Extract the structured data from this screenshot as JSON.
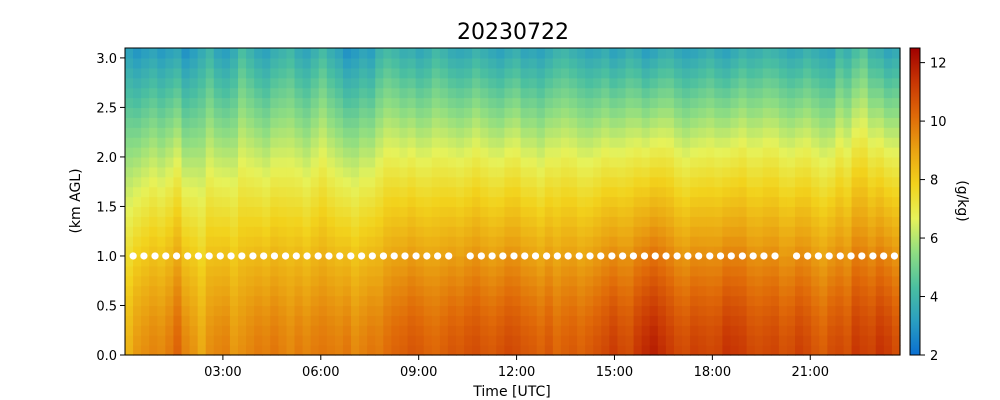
{
  "chart_data": {
    "type": "heatmap",
    "title": "20230722",
    "xlabel": "Time [UTC]",
    "ylabel": "(km AGL)",
    "colorbar_label": "(g/kg)",
    "x_range_hours": [
      0,
      23.75
    ],
    "y_range_km": [
      0,
      3.1
    ],
    "x_tick_values_hours": [
      3,
      6,
      9,
      12,
      15,
      18,
      21
    ],
    "x_tick_labels": [
      "03:00",
      "06:00",
      "09:00",
      "12:00",
      "15:00",
      "18:00",
      "21:00"
    ],
    "y_tick_values": [
      0.0,
      0.5,
      1.0,
      1.5,
      2.0,
      2.5,
      3.0
    ],
    "y_tick_labels": [
      "0.0",
      "0.5",
      "1.0",
      "1.5",
      "2.0",
      "2.5",
      "3.0"
    ],
    "color_range": [
      2,
      12.5
    ],
    "colorbar_tick_values": [
      2,
      4,
      6,
      8,
      10,
      12
    ],
    "colorbar_tick_labels": [
      "2",
      "4",
      "6",
      "8",
      "10",
      "12"
    ],
    "colormap": [
      "#0a6fd1",
      "#2a9fc0",
      "#4bbfa0",
      "#8fdd82",
      "#e6f25a",
      "#f2d21c",
      "#eaa312",
      "#e06a08",
      "#c83604",
      "#a00000"
    ],
    "height_levels_km": [
      0.05,
      0.15,
      0.25,
      0.35,
      0.45,
      0.55,
      0.65,
      0.75,
      0.85,
      0.95,
      1.05,
      1.15,
      1.25,
      1.35,
      1.45,
      1.55,
      1.65,
      1.75,
      1.85,
      1.95,
      2.05,
      2.15,
      2.25,
      2.35,
      2.45,
      2.55,
      2.65,
      2.75,
      2.85,
      2.95,
      3.05
    ],
    "surface_mixing_ratio_g_per_kg": [
      8.6,
      9.2,
      9.4,
      9.6,
      9.5,
      9.8,
      10.3,
      9.6,
      9.3,
      8.8,
      9.4,
      9.6,
      9.7,
      9.2,
      9.4,
      9.6,
      9.8,
      9.7,
      9.9,
      9.7,
      9.5,
      9.8,
      9.6,
      9.8,
      9.9,
      9.8,
      9.7,
      9.9,
      9.5,
      9.7,
      9.9,
      9.8,
      10.1,
      10.3,
      10.4,
      10.6,
      10.5,
      10.3,
      10.2,
      10.4,
      10.6,
      10.5,
      10.7,
      10.8,
      10.6,
      10.5,
      10.7,
      10.9,
      10.8,
      10.6,
      10.5,
      10.3,
      10.6,
      10.2,
      10.4,
      10.5,
      10.3,
      10.5,
      10.7,
      10.9,
      11.2,
      10.9,
      10.8,
      11.3,
      11.6,
      11.8,
      11.5,
      11.2,
      10.9,
      10.8,
      11.1,
      11.0,
      10.9,
      11.0,
      11.4,
      11.3,
      11.2,
      10.9,
      10.8,
      10.9,
      11.0,
      10.7,
      10.8,
      11.1,
      10.9,
      10.6,
      10.4,
      10.8,
      10.9,
      10.7,
      11.3,
      11.1,
      11.0,
      11.4,
      11.2,
      10.8
    ],
    "top_mixing_ratio_g_per_kg": [
      3.3,
      3.0,
      3.2,
      3.4,
      3.1,
      3.3,
      3.5,
      2.9,
      3.2,
      3.6,
      4.0,
      3.4,
      3.2,
      3.6,
      4.3,
      3.9,
      3.5,
      3.3,
      3.7,
      3.9,
      4.1,
      3.6,
      3.4,
      3.8,
      4.2,
      3.7,
      3.4,
      2.9,
      3.1,
      3.4,
      3.2,
      3.9,
      4.2,
      4.0,
      3.7,
      3.8,
      3.5,
      3.7,
      4.1,
      3.9,
      3.6,
      3.5,
      3.6,
      3.9,
      3.7,
      3.5,
      3.3,
      3.6,
      3.8,
      3.4,
      3.5,
      3.3,
      3.6,
      3.9,
      4.0,
      3.8,
      3.6,
      3.4,
      3.5,
      3.7,
      3.3,
      3.5,
      3.8,
      3.6,
      3.2,
      3.4,
      3.7,
      3.8,
      3.5,
      3.3,
      3.4,
      3.6,
      3.8,
      3.5,
      3.3,
      3.6,
      3.9,
      3.7,
      3.8,
      4.0,
      3.9,
      3.7,
      3.5,
      3.6,
      3.9,
      3.7,
      3.5,
      3.4,
      4.1,
      3.8,
      4.3,
      4.6,
      3.9,
      3.8,
      3.4,
      3.6
    ],
    "marker_height_km": 1.0,
    "marker_times_hours": [
      0.25,
      0.58,
      0.92,
      1.25,
      1.58,
      1.92,
      2.25,
      2.58,
      2.92,
      3.25,
      3.58,
      3.92,
      4.25,
      4.58,
      4.92,
      5.25,
      5.58,
      5.92,
      6.25,
      6.58,
      6.92,
      7.25,
      7.58,
      7.92,
      8.25,
      8.58,
      8.92,
      9.25,
      9.58,
      9.92,
      10.58,
      10.92,
      11.25,
      11.58,
      11.92,
      12.25,
      12.58,
      12.92,
      13.25,
      13.58,
      13.92,
      14.25,
      14.58,
      14.92,
      15.25,
      15.58,
      15.92,
      16.25,
      16.58,
      16.92,
      17.25,
      17.58,
      17.92,
      18.25,
      18.58,
      18.92,
      19.25,
      19.58,
      19.92,
      20.58,
      20.92,
      21.25,
      21.58,
      21.92,
      22.25,
      22.58,
      22.92,
      23.25,
      23.58
    ]
  }
}
